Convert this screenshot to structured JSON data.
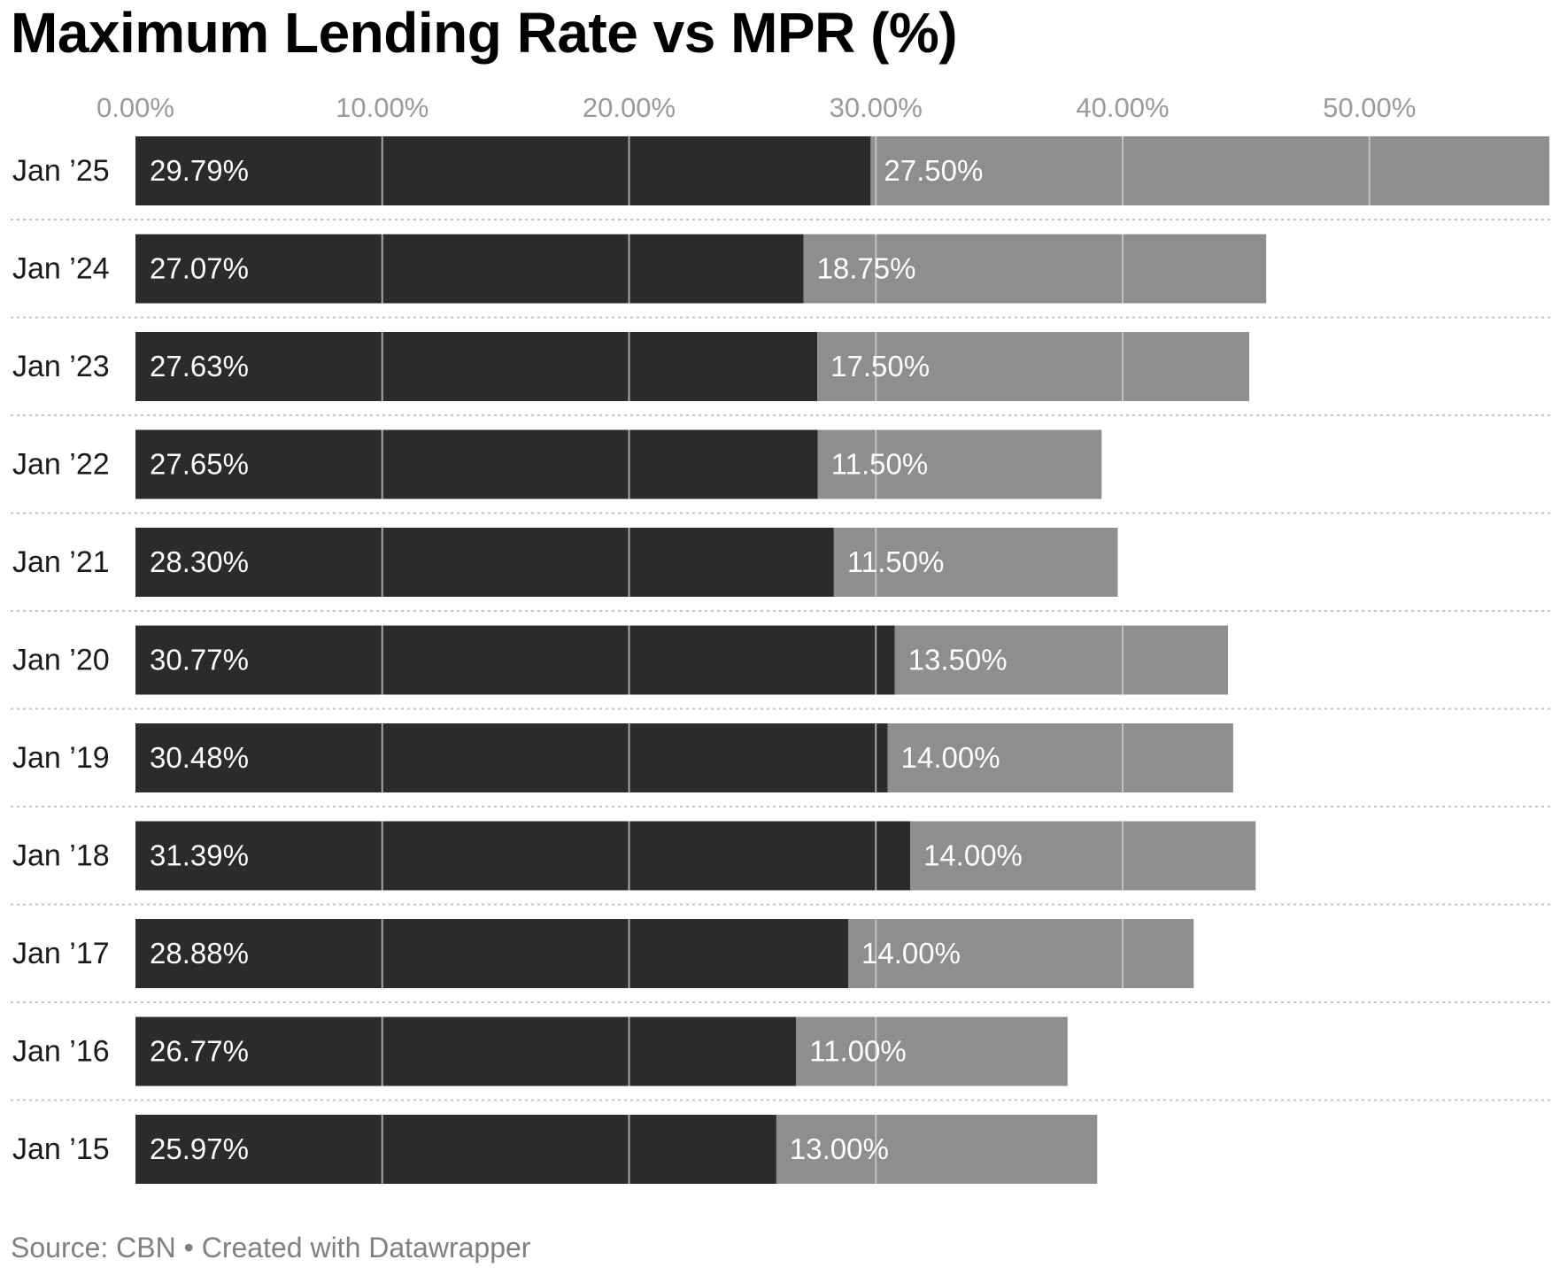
{
  "title": "Maximum Lending Rate vs MPR (%)",
  "source_text": "Source: CBN • Created with Datawrapper",
  "colors": {
    "mlr": "#2b2b2b",
    "mpr": "#8e8e8e",
    "grid": "#d2d2d2",
    "tick": "#9a9a9a",
    "text": "#1a1a1a",
    "separator": "#c4c4c4"
  },
  "chart_data": {
    "type": "bar",
    "orientation": "horizontal",
    "stacked": true,
    "title": "Maximum Lending Rate vs MPR (%)",
    "xlabel": "",
    "ylabel": "",
    "xlim": [
      0,
      57.4
    ],
    "xticks": [
      0,
      10,
      20,
      30,
      40,
      50
    ],
    "xtick_labels": [
      "0.00%",
      "10.00%",
      "20.00%",
      "30.00%",
      "40.00%",
      "50.00%"
    ],
    "categories": [
      "Jan ’25",
      "Jan ’24",
      "Jan ’23",
      "Jan ’22",
      "Jan ’21",
      "Jan ’20",
      "Jan ’19",
      "Jan ’18",
      "Jan ’17",
      "Jan ’16",
      "Jan ’15"
    ],
    "series": [
      {
        "name": "Maximum Lending Rate",
        "values": [
          29.79,
          27.07,
          27.63,
          27.65,
          28.3,
          30.77,
          30.48,
          31.39,
          28.88,
          26.77,
          25.97
        ],
        "labels": [
          "29.79%",
          "27.07%",
          "27.63%",
          "27.65%",
          "28.30%",
          "30.77%",
          "30.48%",
          "31.39%",
          "28.88%",
          "26.77%",
          "25.97%"
        ]
      },
      {
        "name": "MPR",
        "values": [
          27.5,
          18.75,
          17.5,
          11.5,
          11.5,
          13.5,
          14.0,
          14.0,
          14.0,
          11.0,
          13.0
        ],
        "labels": [
          "27.50%",
          "18.75%",
          "17.50%",
          "11.50%",
          "11.50%",
          "13.50%",
          "14.00%",
          "14.00%",
          "14.00%",
          "11.00%",
          "13.00%"
        ]
      }
    ],
    "grid": true,
    "legend": "none"
  }
}
